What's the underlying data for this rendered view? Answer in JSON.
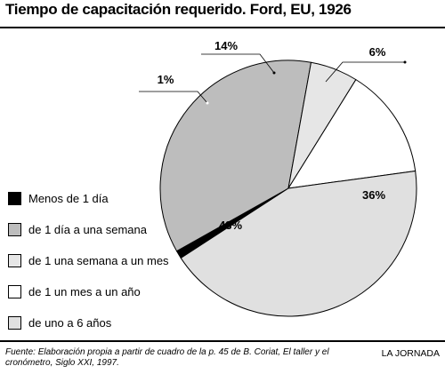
{
  "header": {
    "title": "Tiempo de capacitación requerido. Ford, EU, 1926"
  },
  "chart_data": {
    "type": "pie",
    "title": "Tiempo de capacitación requerido. Ford, EU, 1926",
    "legend_placement": "left",
    "slices": [
      {
        "name": "Menos de 1 día",
        "value": 1,
        "label": "1%",
        "color": "#000000"
      },
      {
        "name": "de 1 día a una semana",
        "value": 36,
        "label": "36%",
        "color": "#bdbdbd"
      },
      {
        "name": "de 1 una semana a un mes",
        "value": 6,
        "label": "6%",
        "color": "#e6e6e6"
      },
      {
        "name": "de 1 un mes a un año",
        "value": 14,
        "label": "14%",
        "color": "#ffffff"
      },
      {
        "name": "de uno a 6 años",
        "value": 43,
        "label": "43%",
        "color": "#e0e0e0"
      }
    ]
  },
  "footer": {
    "source": "Fuente: Elaboración propia a partir de cuadro de la p. 45 de B. Coriat, El taller y el cronómetro, Siglo XXI, 1997.",
    "brand": "LA JORNADA"
  }
}
